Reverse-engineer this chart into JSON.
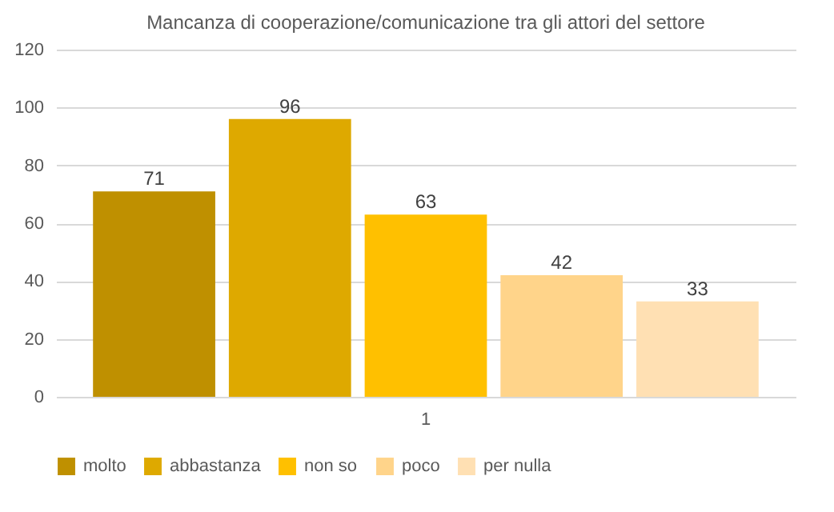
{
  "chart_data": {
    "type": "bar",
    "title": "Mancanza di cooperazione/comunicazione tra gli attori del settore",
    "categories": [
      "1"
    ],
    "series": [
      {
        "name": "molto",
        "color": "#bf9000",
        "values": [
          71
        ]
      },
      {
        "name": "abbastanza",
        "color": "#dea900",
        "values": [
          96
        ]
      },
      {
        "name": "non so",
        "color": "#ffc000",
        "values": [
          63
        ]
      },
      {
        "name": "poco",
        "color": "#ffd48a",
        "values": [
          42
        ]
      },
      {
        "name": "per nulla",
        "color": "#ffe0b3",
        "values": [
          33
        ]
      }
    ],
    "ylim": [
      0,
      120
    ],
    "yticks": [
      0,
      20,
      40,
      60,
      80,
      100,
      120
    ],
    "grid": "y",
    "legend": "bottom",
    "data_labels": true
  }
}
